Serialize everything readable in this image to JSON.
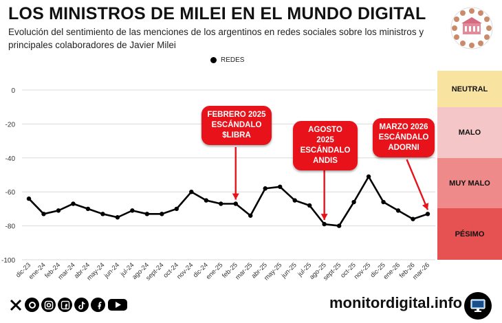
{
  "header": {
    "title": "LOS MINISTROS DE MILEI EN EL MUNDO DIGITAL",
    "subtitle": "Evolución del sentimiento de las menciones de los argentinos en redes sociales sobre los ministros y principales colaboradores de Javier Milei"
  },
  "chart_data": {
    "type": "line",
    "categories": [
      "dic-23",
      "ene-24",
      "feb-24",
      "mar-24",
      "abr-24",
      "may-24",
      "jun-24",
      "jul-24",
      "ago-24",
      "sept-24",
      "oct-24",
      "nov-24",
      "dic-24",
      "ene-25",
      "feb-25",
      "mar-25",
      "abr-25",
      "may-25",
      "jun-25",
      "jul-25",
      "ago-25",
      "sept-25",
      "oct-25",
      "nov-25",
      "dic-25",
      "ene-26",
      "feb-26",
      "mar-26"
    ],
    "series": [
      {
        "name": "REDES",
        "values": [
          -64,
          -73,
          -71,
          -67,
          -70,
          -73,
          -75,
          -71,
          -73,
          -73,
          -70,
          -60,
          -65,
          -67,
          -67,
          -74,
          -58,
          -57,
          -65,
          -68,
          -79,
          -80,
          -66,
          -51,
          -66,
          -71,
          -76,
          -73
        ]
      }
    ],
    "yticks": [
      0,
      -20,
      -40,
      -60,
      -80,
      -100
    ],
    "ylim": [
      -100,
      0
    ],
    "grid": "horizontal",
    "legend_position": "top-center",
    "series_color": "#000000"
  },
  "bands": [
    {
      "label": "NEUTRAL",
      "color": "#f9e3a1"
    },
    {
      "label": "MALO",
      "color": "#f5c6c7"
    },
    {
      "label": "MUY MALO",
      "color": "#ef8a8a"
    },
    {
      "label": "PÉSIMO",
      "color": "#e65252"
    }
  ],
  "annotations": [
    {
      "text": "FEBRERO 2025\nESCÁNDALO\n$LIBRA",
      "category": "feb-25"
    },
    {
      "text": "AGOSTO 2025\nESCÁNDALO\nANDIS",
      "category": "ago-25"
    },
    {
      "text": "MARZO 2026\nESCÁNDALO\nADORNI",
      "category": "mar-26"
    }
  ],
  "footer": {
    "site": "monitordigital.info",
    "social_icons": [
      "x-icon",
      "threads-icon",
      "instagram-icon",
      "facebook-icon",
      "tiktok-icon",
      "facebook-icon",
      "youtube-icon"
    ]
  },
  "colors": {
    "callout": "#e8121a",
    "line": "#000000",
    "grid": "#d9d9d9"
  }
}
